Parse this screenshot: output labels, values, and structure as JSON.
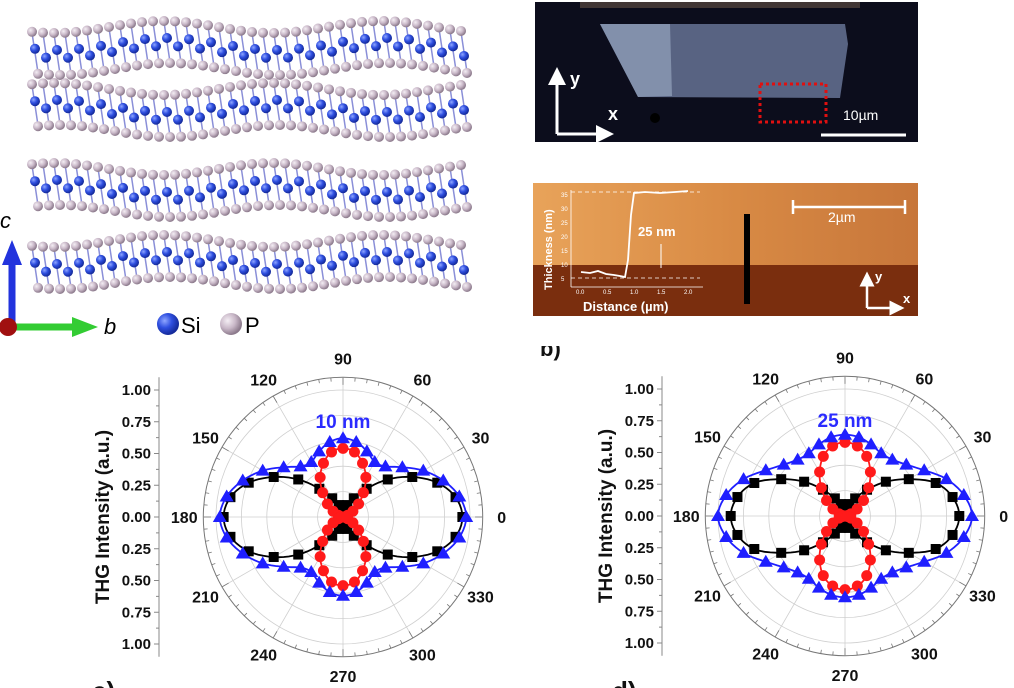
{
  "crystal": {
    "axis_c": "c",
    "axis_b": "b",
    "legend": [
      {
        "label": "Si",
        "color": "#2f4fe0"
      },
      {
        "label": "P",
        "color": "#c9b8c8"
      }
    ]
  },
  "optical_image": {
    "axis_x": "x",
    "axis_y": "y",
    "scale_label": "10µm",
    "roi_color": "#e01010"
  },
  "afm_image": {
    "scale_label": "2µm",
    "axis_x": "x",
    "axis_y": "y",
    "inset": {
      "ylabel": "Thickness (nm)",
      "xlabel": "Distance (µm)",
      "step_label": "25 nm",
      "xticks": [
        "0.0",
        "0.5",
        "1.0",
        "1.5",
        "2.0"
      ],
      "yticks": [
        "5",
        "10",
        "15",
        "20",
        "25",
        "30",
        "35"
      ]
    }
  },
  "panel_letters": {
    "b": "b)",
    "c": "c)",
    "d": "d)"
  },
  "chart_data": [
    {
      "type": "polar-scatter",
      "annotation": "10 nm",
      "ylabel": "THG Intensity (a.u.)",
      "radial_ticks": [
        "1.00",
        "0.75",
        "0.50",
        "0.25",
        "0.00",
        "0.25",
        "0.50",
        "0.75",
        "1.00"
      ],
      "angle_labels": [
        "0",
        "30",
        "60",
        "90",
        "120",
        "150",
        "180",
        "210",
        "240",
        "270",
        "300",
        "330"
      ],
      "rlim": [
        0,
        1
      ],
      "theta_deg": [
        0,
        10,
        20,
        30,
        40,
        50,
        60,
        70,
        80,
        90,
        100,
        110,
        120,
        130,
        140,
        150,
        160,
        170,
        180,
        190,
        200,
        210,
        220,
        230,
        240,
        250,
        260,
        270,
        280,
        290,
        300,
        310,
        320,
        330,
        340,
        350
      ],
      "series": [
        {
          "marker": "square",
          "color": "#000000",
          "values": [
            0.94,
            0.9,
            0.79,
            0.63,
            0.46,
            0.29,
            0.17,
            0.1,
            0.06,
            0.06,
            0.06,
            0.1,
            0.17,
            0.29,
            0.46,
            0.63,
            0.79,
            0.9,
            0.94,
            0.9,
            0.79,
            0.63,
            0.46,
            0.29,
            0.17,
            0.1,
            0.06,
            0.06,
            0.06,
            0.1,
            0.17,
            0.29,
            0.46,
            0.63,
            0.79,
            0.9
          ]
        },
        {
          "marker": "circle",
          "color": "#ff1a1a",
          "values": [
            0.02,
            0.02,
            0.04,
            0.09,
            0.16,
            0.25,
            0.36,
            0.45,
            0.52,
            0.54,
            0.52,
            0.45,
            0.36,
            0.25,
            0.16,
            0.09,
            0.04,
            0.02,
            0.02,
            0.02,
            0.04,
            0.09,
            0.16,
            0.25,
            0.36,
            0.45,
            0.52,
            0.54,
            0.52,
            0.45,
            0.36,
            0.25,
            0.16,
            0.09,
            0.04,
            0.02
          ]
        },
        {
          "marker": "triangle",
          "color": "#1f1fff",
          "values": [
            0.97,
            0.93,
            0.84,
            0.73,
            0.61,
            0.52,
            0.5,
            0.55,
            0.6,
            0.62,
            0.6,
            0.55,
            0.5,
            0.52,
            0.61,
            0.73,
            0.84,
            0.93,
            0.97,
            0.93,
            0.84,
            0.73,
            0.61,
            0.52,
            0.5,
            0.55,
            0.6,
            0.62,
            0.6,
            0.55,
            0.5,
            0.52,
            0.61,
            0.73,
            0.84,
            0.93
          ]
        }
      ]
    },
    {
      "type": "polar-scatter",
      "annotation": "25 nm",
      "ylabel": "THG Intensity (a.u.)",
      "radial_ticks": [
        "1.00",
        "0.75",
        "0.50",
        "0.25",
        "0.00",
        "0.25",
        "0.50",
        "0.75",
        "1.00"
      ],
      "angle_labels": [
        "0",
        "30",
        "60",
        "90",
        "120",
        "150",
        "180",
        "210",
        "240",
        "270",
        "300",
        "330"
      ],
      "rlim": [
        0,
        1
      ],
      "theta_deg": [
        0,
        10,
        20,
        30,
        40,
        50,
        60,
        70,
        80,
        90,
        100,
        110,
        120,
        130,
        140,
        150,
        160,
        170,
        180,
        190,
        200,
        210,
        220,
        230,
        240,
        250,
        260,
        270,
        280,
        290,
        300,
        310,
        320,
        330,
        340,
        350
      ],
      "series": [
        {
          "marker": "square",
          "color": "#000000",
          "values": [
            0.9,
            0.86,
            0.76,
            0.58,
            0.42,
            0.27,
            0.16,
            0.1,
            0.07,
            0.06,
            0.07,
            0.1,
            0.16,
            0.27,
            0.42,
            0.58,
            0.76,
            0.86,
            0.9,
            0.86,
            0.76,
            0.58,
            0.42,
            0.27,
            0.16,
            0.1,
            0.07,
            0.06,
            0.07,
            0.1,
            0.16,
            0.27,
            0.42,
            0.58,
            0.76,
            0.86
          ]
        },
        {
          "marker": "circle",
          "color": "#ff1a1a",
          "values": [
            0.02,
            0.02,
            0.05,
            0.11,
            0.19,
            0.29,
            0.4,
            0.5,
            0.56,
            0.58,
            0.56,
            0.5,
            0.4,
            0.29,
            0.19,
            0.11,
            0.05,
            0.02,
            0.02,
            0.02,
            0.05,
            0.11,
            0.19,
            0.29,
            0.4,
            0.5,
            0.56,
            0.58,
            0.56,
            0.5,
            0.4,
            0.29,
            0.19,
            0.11,
            0.05,
            0.02
          ]
        },
        {
          "marker": "triangle",
          "color": "#1f1fff",
          "values": [
            1.0,
            0.95,
            0.85,
            0.72,
            0.63,
            0.58,
            0.57,
            0.6,
            0.63,
            0.64,
            0.63,
            0.6,
            0.57,
            0.58,
            0.63,
            0.72,
            0.85,
            0.95,
            1.0,
            0.95,
            0.85,
            0.72,
            0.63,
            0.58,
            0.57,
            0.6,
            0.63,
            0.64,
            0.63,
            0.6,
            0.57,
            0.58,
            0.63,
            0.72,
            0.85,
            0.95
          ]
        }
      ]
    }
  ]
}
